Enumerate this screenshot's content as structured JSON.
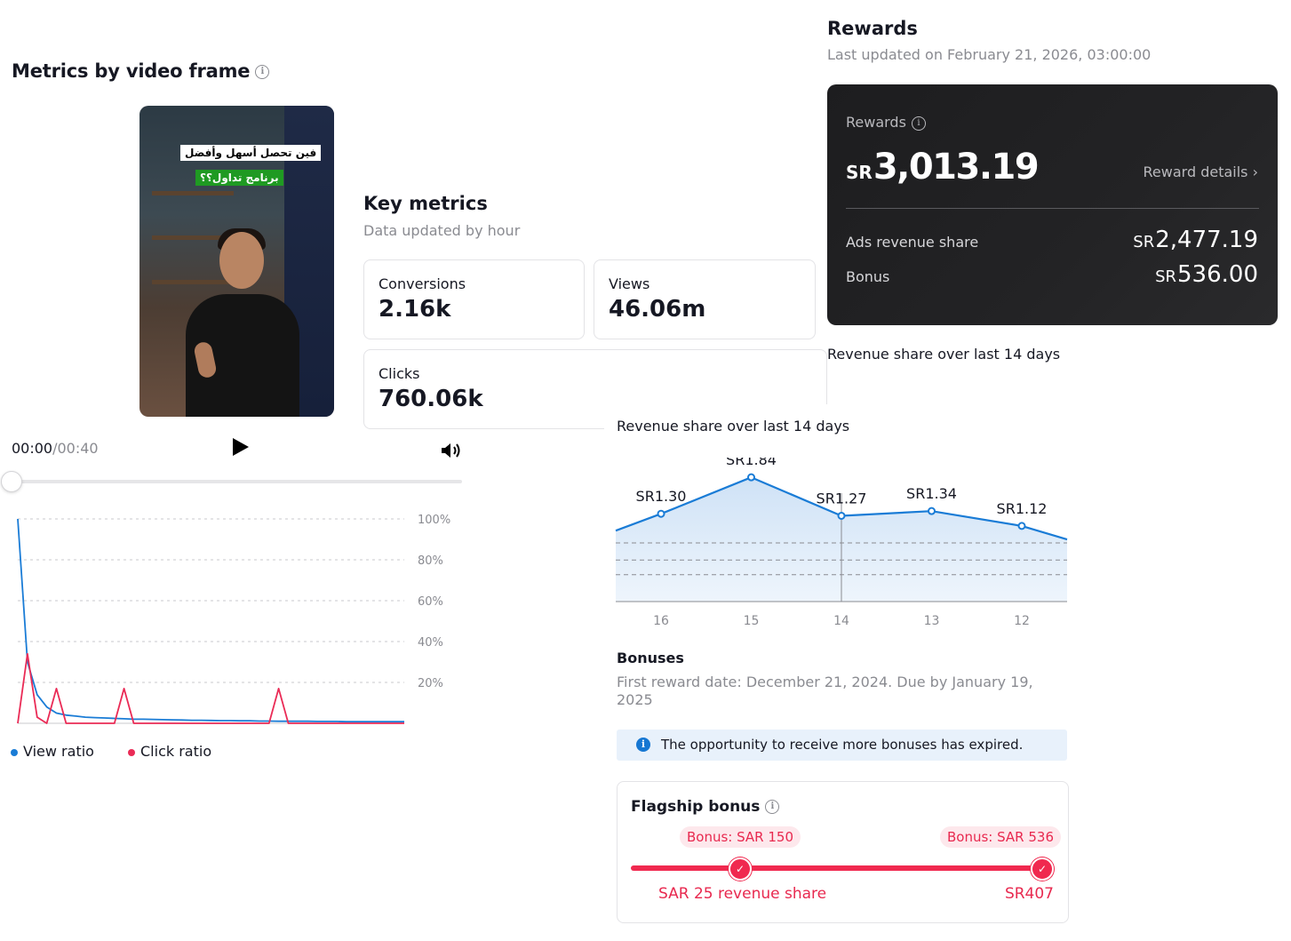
{
  "metrics_by_frame": {
    "title": "Metrics by video frame",
    "video": {
      "caption_line1": "فين تحصل أسهل وأفضل",
      "caption_line2": "برنامج تداول؟؟",
      "current_time": "00:00",
      "duration": "/00:40"
    },
    "chart_data": {
      "type": "line",
      "x": [
        0,
        1,
        2,
        3,
        4,
        5,
        6,
        7,
        8,
        9,
        10,
        11,
        12,
        13,
        14,
        15,
        16,
        17,
        18,
        19,
        20,
        21,
        22,
        23,
        24,
        25,
        26,
        27,
        28,
        29,
        30,
        31,
        32,
        33,
        34,
        35,
        36,
        37,
        38,
        39,
        40
      ],
      "series": [
        {
          "name": "View ratio",
          "color": "#1a7cd6",
          "values": [
            100,
            30,
            14,
            8,
            5,
            4,
            3.5,
            3,
            2.8,
            2.6,
            2.4,
            2.2,
            2,
            2,
            1.9,
            1.8,
            1.7,
            1.6,
            1.5,
            1.5,
            1.4,
            1.3,
            1.3,
            1.2,
            1.2,
            1.1,
            1.1,
            1,
            1,
            1,
            1,
            0.9,
            0.9,
            0.9,
            0.8,
            0.8,
            0.8,
            0.8,
            0.8,
            0.8,
            0.8
          ]
        },
        {
          "name": "Click ratio",
          "color": "#ea2b56",
          "values": [
            0,
            34,
            3,
            0,
            17,
            0,
            0,
            0,
            0,
            0,
            0,
            17,
            0,
            0,
            0,
            0,
            0,
            0,
            0,
            0,
            0,
            0,
            0,
            0,
            0,
            0,
            0,
            17,
            0,
            0,
            0,
            0,
            0,
            0,
            0,
            0,
            0,
            0,
            0,
            0,
            0
          ]
        }
      ],
      "ylim": [
        0,
        100
      ],
      "y_ticks": [
        "20%",
        "40%",
        "60%",
        "80%",
        "100%"
      ],
      "grid": true,
      "legend": "bottom-left"
    }
  },
  "key_metrics": {
    "title": "Key metrics",
    "subtitle": "Data updated by hour",
    "cards": [
      {
        "label": "Conversions",
        "value": "2.16k"
      },
      {
        "label": "Views",
        "value": "46.06m"
      },
      {
        "label": "Clicks",
        "value": "760.06k"
      }
    ]
  },
  "rewards": {
    "title": "Rewards",
    "last_updated": "Last updated on February 21, 2026, 03:00:00",
    "label": "Rewards",
    "currency": "SR",
    "total": "3,013.19",
    "details_link": "Reward details ›",
    "rows": [
      {
        "label": "Ads revenue share",
        "currency": "SR",
        "value": "2,477.19"
      },
      {
        "label": "Bonus",
        "currency": "SR",
        "value": "536.00"
      }
    ]
  },
  "revenue_share": {
    "title_top": "Revenue share over last 14 days",
    "title": "Revenue share over last 14 days",
    "chart_data": {
      "type": "area",
      "x": [
        "16",
        "15",
        "14",
        "13",
        "12"
      ],
      "series": [
        {
          "values": [
            1.3,
            1.84,
            1.27,
            1.34,
            1.12
          ],
          "color": "#1a7cd6"
        }
      ],
      "point_labels": [
        "SR1.30",
        "SR1.84",
        "SR1.27",
        "SR1.34",
        "SR1.12"
      ],
      "ylim": [
        0,
        2
      ],
      "grid": true
    }
  },
  "bonuses": {
    "title": "Bonuses",
    "subtitle": "First reward date: December 21, 2024. Due by January 19, 2025",
    "notice": "The opportunity to receive more bonuses has expired.",
    "flagship": {
      "title": "Flagship bonus",
      "pill_left": "Bonus: SAR 150",
      "pill_right": "Bonus: SAR 536",
      "label_left": "SAR 25 revenue share",
      "label_right": "SR407",
      "progress": 1.0
    }
  }
}
